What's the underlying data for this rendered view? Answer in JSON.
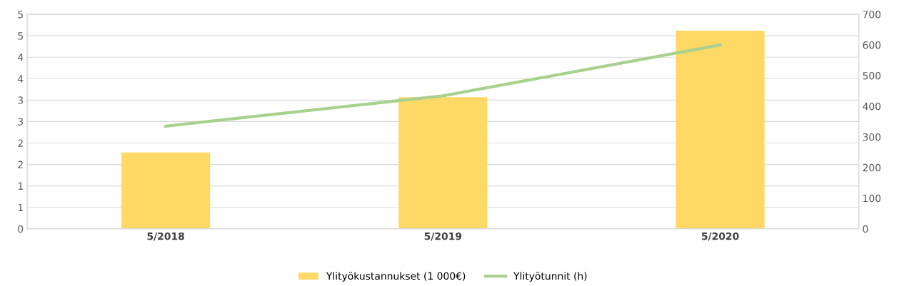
{
  "chart_data": {
    "type": "bar",
    "categories": [
      "5/2018",
      "5/2019",
      "5/2020"
    ],
    "series": [
      {
        "name": "Ylityökustannukset (1 000€)",
        "color": "#ffd966",
        "values": [
          1.78,
          3.07,
          4.62
        ]
      },
      {
        "name": "Ylityötunnit (h)",
        "color": "#a9d18e",
        "type": "line",
        "axis": "y2",
        "values": [
          335,
          434,
          600
        ]
      }
    ],
    "ylim": [
      0,
      5
    ],
    "yticks": [
      0,
      {
        "value": 0.5,
        "label": "1"
      },
      1,
      {
        "value": 1.5,
        "label": "2"
      },
      2,
      {
        "value": 2.5,
        "label": "3"
      },
      3,
      {
        "value": 3.5,
        "label": "4"
      },
      4,
      {
        "value": 4.5,
        "label": "5"
      },
      5
    ],
    "y2lim": [
      0,
      700
    ],
    "y2ticks": [
      0,
      100,
      200,
      300,
      400,
      500,
      600,
      700
    ],
    "grid": "y",
    "legend": "bottom",
    "marker": "none"
  }
}
